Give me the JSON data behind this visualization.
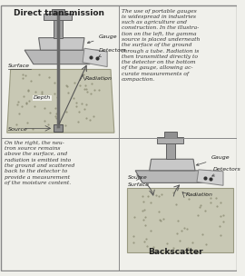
{
  "title_top": "Direct transmission",
  "title_bottom": "Backscatter",
  "bg_color": "#f0f0eb",
  "border_color": "#888888",
  "text_right_top": "The use of portable gauges\nis widespread in industries\nsuch as agriculture and\nconstruction. In the illustra-\ntion on the left, the gamma\nsource is placed underneath\nthe surface of the ground\nthrough a tube. Radiation is\nthen transmitted directly to\nthe detector on the bottom\nof the gauge, allowing ac-\ncurate measurements of\ncompaction.",
  "text_left_bottom": "On the right, the neu-\ntron source remains\nabove the surface, and\nradiation is emitted into\nthe ground and scattered\nback to the detector to\nprovide a measurement\nof the moisture content.",
  "ground_face_color": "#c8c8b4",
  "ground_edge_color": "#999980",
  "gauge_body_color": "#b8b8b8",
  "gauge_top_color": "#c8c8c8",
  "gauge_handle_color": "#a0a0a0",
  "gauge_dark_color": "#808080",
  "side_face_color": "#d0d0d0",
  "side_edge_color": "#808080",
  "dot_color": "#888870",
  "label_gauge": "Gauge",
  "label_detectors": "Detectors",
  "label_radiation": "Radiation",
  "label_surface": "Surface",
  "label_depth": "Depth",
  "label_source": "Source",
  "label_font_size": 4.5,
  "title_font_size": 6.5,
  "text_font_size": 4.3
}
